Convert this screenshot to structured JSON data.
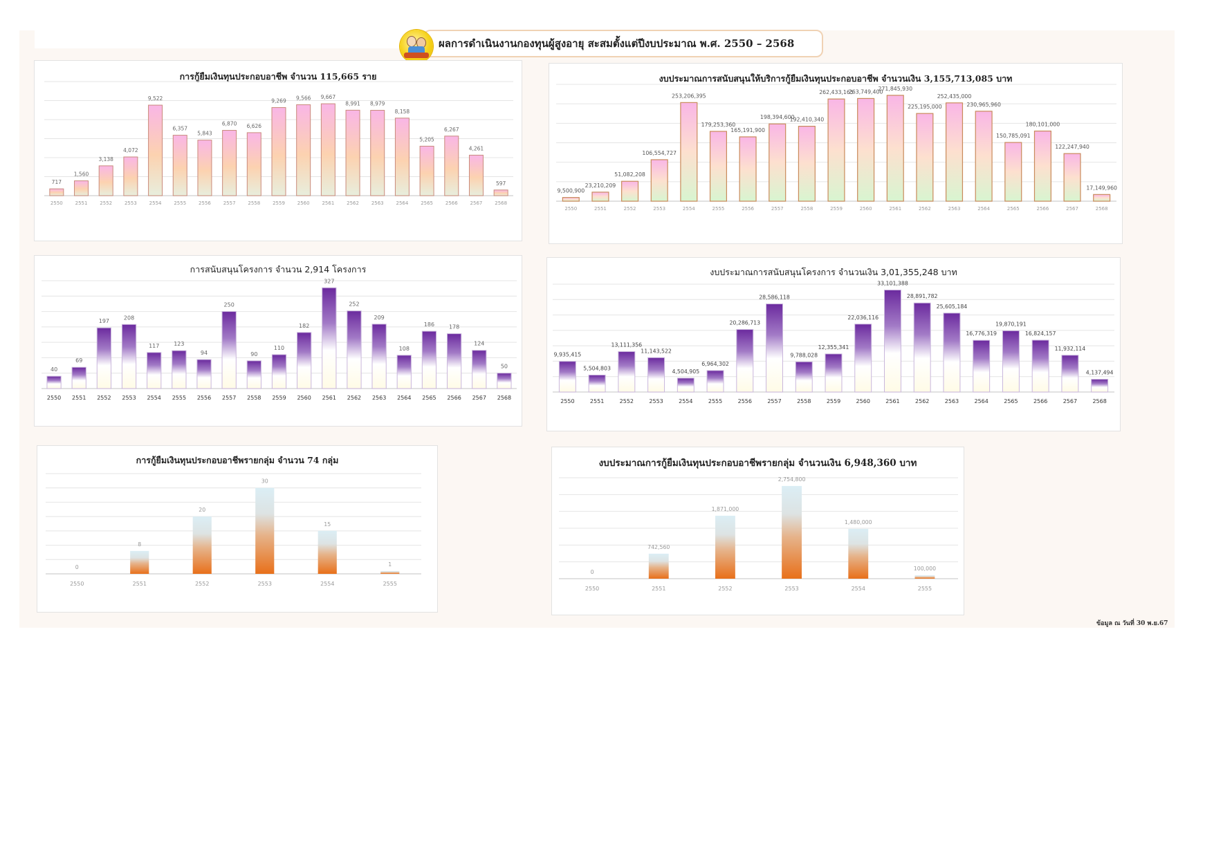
{
  "header": {
    "title": "ผลการดำเนินงานกองทุนผู้สูงอายุ สะสมตั้งแต่ปีงบประมาณ พ.ศ. 2550 – 2568",
    "logo_icon": "elderly-fund-logo-icon"
  },
  "footnote": "ข้อมูล ณ วันที่ 30 พ.ย.67",
  "colors": {
    "pink_top": "#f9b6e6",
    "peach_mid": "#fcd2b0",
    "green_bottom": "#d8f5d0",
    "pink_border": "#c98a7a",
    "purple_top": "#6b2a9e",
    "cream_bottom": "#fffbe6",
    "orange_bottom": "#e8701a",
    "lightblue_top": "#dbeef5",
    "page_bg": "#fcf7f3"
  },
  "chart_data": [
    {
      "id": "individual-loans",
      "type": "bar",
      "title": "การกู้ยืมเงินทุนประกอบอาชีพ จำนวน 115,665 ราย",
      "xlabel": "",
      "ylabel": "",
      "categories": [
        "2550",
        "2551",
        "2552",
        "2553",
        "2554",
        "2555",
        "2556",
        "2557",
        "2558",
        "2559",
        "2560",
        "2561",
        "2562",
        "2563",
        "2564",
        "2565",
        "2566",
        "2567",
        "2568"
      ],
      "values": [
        717,
        1560,
        3138,
        4072,
        9522,
        6357,
        5843,
        6870,
        6626,
        9269,
        9566,
        9667,
        8991,
        8979,
        8158,
        5205,
        6267,
        4261,
        597
      ],
      "labels": [
        "717",
        "1,560",
        "3,138",
        "4,072",
        "9,522",
        "6,357",
        "5,843",
        "6,870",
        "6,626",
        "9,269",
        "9,566",
        "9,667",
        "8,991",
        "8,979",
        "8,158",
        "5,205",
        "6,267",
        "4,261",
        "597"
      ],
      "ylim": [
        0,
        12000
      ],
      "grid": true,
      "legend": "none"
    },
    {
      "id": "individual-loan-budget",
      "type": "bar",
      "title": "งบประมาณการสนับสนุนให้บริการกู้ยืมเงินทุนประกอบอาชีพ จำนวนเงิน 3,155,713,085 บาท",
      "xlabel": "",
      "ylabel": "",
      "categories": [
        "2550",
        "2551",
        "2552",
        "2553",
        "2554",
        "2555",
        "2556",
        "2557",
        "2558",
        "2559",
        "2560",
        "2561",
        "2562",
        "2563",
        "2564",
        "2565",
        "2566",
        "2567",
        "2568"
      ],
      "values": [
        9500900,
        23210209,
        51082208,
        106554727,
        253206395,
        179253360,
        165191900,
        198394600,
        192410340,
        262433165,
        263749400,
        271845930,
        225195000,
        252435000,
        230965960,
        150785091,
        180101000,
        122247940,
        17149960
      ],
      "labels": [
        "9,500,900",
        "23,210,209",
        "51,082,208",
        "106,554,727",
        "253,206,395",
        "179,253,360",
        "165,191,900",
        "198,394,600",
        "192,410,340",
        "262,433,165",
        "263,749,400",
        "271,845,930",
        "225,195,000",
        "252,435,000",
        "230,965,960",
        "150,785,091",
        "180,101,000",
        "122,247,940",
        "17,149,960"
      ],
      "ylim": [
        0,
        300000000
      ],
      "grid": true,
      "legend": "none"
    },
    {
      "id": "projects-supported",
      "type": "bar",
      "title": "การสนับสนุนโครงการ จำนวน 2,914 โครงการ",
      "xlabel": "",
      "ylabel": "",
      "categories": [
        "2550",
        "2551",
        "2552",
        "2553",
        "2554",
        "2555",
        "2556",
        "2557",
        "2558",
        "2559",
        "2560",
        "2561",
        "2562",
        "2563",
        "2564",
        "2565",
        "2566",
        "2567",
        "2568"
      ],
      "values": [
        40,
        69,
        197,
        208,
        117,
        123,
        94,
        250,
        90,
        110,
        182,
        327,
        252,
        209,
        108,
        186,
        178,
        124,
        50
      ],
      "labels": [
        "40",
        "69",
        "197",
        "208",
        "117",
        "123",
        "94",
        "250",
        "90",
        "110",
        "182",
        "327",
        "252",
        "209",
        "108",
        "186",
        "178",
        "124",
        "50"
      ],
      "ylim": [
        0,
        350
      ],
      "grid": true,
      "legend": "none"
    },
    {
      "id": "project-budget",
      "type": "bar",
      "title": "งบประมาณการสนับสนุนโครงการ จำนวนเงิน 3,01,355,248 บาท",
      "xlabel": "",
      "ylabel": "",
      "categories": [
        "2550",
        "2551",
        "2552",
        "2553",
        "2554",
        "2555",
        "2556",
        "2557",
        "2558",
        "2559",
        "2560",
        "2561",
        "2562",
        "2563",
        "2564",
        "2565",
        "2566",
        "2567",
        "2568"
      ],
      "values": [
        9935415,
        5504803,
        13111356,
        11143522,
        4504905,
        6964302,
        20286713,
        28586118,
        9788028,
        12355341,
        22036116,
        33101388,
        28891782,
        25605184,
        16776319,
        19870191,
        16824157,
        11932114,
        4137494
      ],
      "labels": [
        "9,935,415",
        "5,504,803",
        "13,111,356",
        "11,143,522",
        "4,504,905",
        "6,964,302",
        "20,286,713",
        "28,586,118",
        "9,788,028",
        "12,355,341",
        "22,036,116",
        "33,101,388",
        "28,891,782",
        "25,605,184",
        "16,776,319",
        "19,870,191",
        "16,824,157",
        "11,932,114",
        "4,137,494"
      ],
      "ylim": [
        0,
        35000000
      ],
      "grid": true,
      "legend": "none"
    },
    {
      "id": "group-loans",
      "type": "bar",
      "title": "การกู้ยืมเงินทุนประกอบอาชีพรายกลุ่ม จำนวน 74 กลุ่ม",
      "xlabel": "",
      "ylabel": "",
      "categories": [
        "2550",
        "2551",
        "2552",
        "2553",
        "2554",
        "2555"
      ],
      "values": [
        0,
        8,
        20,
        30,
        15,
        1
      ],
      "labels": [
        "0",
        "8",
        "20",
        "30",
        "15",
        "1"
      ],
      "ylim": [
        0,
        35
      ],
      "grid": true,
      "legend": "none"
    },
    {
      "id": "group-loan-budget",
      "type": "bar",
      "title": "งบประมาณการกู้ยืมเงินทุนประกอบอาชีพรายกลุ่ม จำนวนเงิน 6,948,360 บาท",
      "xlabel": "",
      "ylabel": "",
      "categories": [
        "2550",
        "2551",
        "2552",
        "2553",
        "2554",
        "2555"
      ],
      "values": [
        0,
        742560,
        1871000,
        2754800,
        1480000,
        100000
      ],
      "labels": [
        "0",
        "742,560",
        "1,871,000",
        "2,754,800",
        "1,480,000",
        "100,000"
      ],
      "ylim": [
        0,
        3000000
      ],
      "grid": true,
      "legend": "none"
    }
  ]
}
